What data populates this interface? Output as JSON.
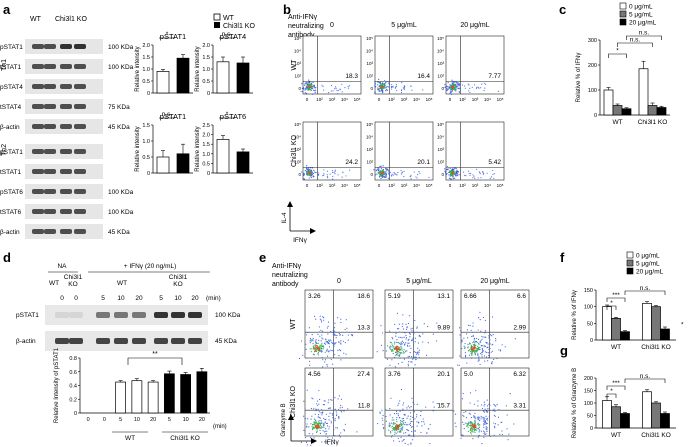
{
  "panels": {
    "a": {
      "letter": "a",
      "legend_wt": "WT",
      "legend_ko": "Chi3l1 KO",
      "blot_header": [
        "WT",
        "Chi3l1 KO"
      ],
      "groups": [
        "Th1",
        "Th2"
      ],
      "bands": [
        {
          "name": "pSTAT1",
          "mw": "100 KDa"
        },
        {
          "name": "tSTAT1",
          "mw": "100 KDa"
        },
        {
          "name": "pSTAT4",
          "mw": ""
        },
        {
          "name": "tSTAT4",
          "mw": "75 KDa"
        },
        {
          "name": "β-actin",
          "mw": "45 KDa"
        },
        {
          "name": "pSTAT1",
          "mw": ""
        },
        {
          "name": "tSTAT1",
          "mw": ""
        },
        {
          "name": "pSTAT6",
          "mw": "100 KDa"
        },
        {
          "name": "tSTAT6",
          "mw": "100 KDa"
        },
        {
          "name": "β-actin",
          "mw": "45 KDa"
        }
      ],
      "ylabel": "Relative intensity",
      "sig": [
        "*",
        "n.s.",
        "n.s.",
        "*"
      ]
    },
    "b": {
      "letter": "b",
      "treatment": "Anti-IFNγ neutralizing antibody",
      "doses": [
        "0",
        "5 μg/mL",
        "20 μg/mL"
      ],
      "rows": [
        "WT",
        "Chi3l1 KO"
      ],
      "quadrant_values": [
        [
          "18.3",
          "16.4",
          "7.77"
        ],
        [
          "24.2",
          "20.1",
          "5.42"
        ]
      ],
      "ylabel": "IL-4",
      "xlabel": "IFNγ"
    },
    "c": {
      "letter": "c",
      "legend": [
        "0 μg/mL",
        "5 μg/mL",
        "20 μg/mL"
      ],
      "ylabel": "Relative % of IFNγ",
      "groups": [
        "WT",
        "Chi3l1 KO"
      ],
      "sig": [
        "*",
        "n.s.",
        "n.s."
      ]
    },
    "d": {
      "letter": "d",
      "na": "NA",
      "ifn": "+ IFNγ (20 ng/mL)",
      "genotypes": [
        "WT",
        "Chi3l1 KO",
        "WT",
        "Chi3l1 KO"
      ],
      "timepoints": [
        "0",
        "0",
        "5",
        "10",
        "20",
        "5",
        "10",
        "20"
      ],
      "min": "(min)",
      "bands": [
        {
          "name": "pSTAT1",
          "mw": "100 KDa"
        },
        {
          "name": "β-actin",
          "mw": "45 KDa"
        }
      ],
      "ylabel": "Relative Intensity of pSTAT1",
      "x_groups": [
        "WT",
        "Chi3l1 KO"
      ],
      "sig": "**"
    },
    "e": {
      "letter": "e",
      "treatment": "Anti-IFNγ neutralizing antibody",
      "doses": [
        "0",
        "5 μg/mL",
        "20 μg/mL"
      ],
      "rows": [
        "WT",
        "Chi3l1 KO"
      ],
      "quadrants": [
        [
          [
            "3.26",
            "18.6",
            "13.3"
          ],
          [
            "5.19",
            "13.1",
            "9.89"
          ],
          [
            "6.66",
            "6.6",
            "2.99"
          ]
        ],
        [
          [
            "4.56",
            "27.4",
            "11.8"
          ],
          [
            "3.76",
            "20.1",
            "15.7"
          ],
          [
            "5.0",
            "6.32",
            "3.31"
          ]
        ]
      ],
      "ylabel": "Granzyme B",
      "xlabel": "IFNγ"
    },
    "f": {
      "letter": "f",
      "legend": [
        "0 μg/mL",
        "5 μg/mL",
        "20 μg/mL"
      ],
      "ylabel": "Relative % of IFNγ",
      "groups": [
        "WT",
        "Chi3l1 KO"
      ],
      "sig": [
        "*",
        "***",
        "n.s."
      ]
    },
    "g": {
      "letter": "g",
      "ylabel": "Relative % of Granzyme B",
      "groups": [
        "WT",
        "Chi3l1 KO"
      ],
      "sig": [
        "*",
        "***",
        "n.s."
      ]
    }
  },
  "chart_data": [
    {
      "type": "bar",
      "id": "a-pSTAT1",
      "title": "pSTAT1",
      "ylabel": "Relative intensity",
      "categories": [
        "WT",
        "Chi3l1 KO"
      ],
      "values": [
        0.9,
        1.45
      ],
      "errors": [
        0.08,
        0.15
      ],
      "ylim": [
        0,
        2
      ],
      "yticks": [
        "0",
        "0.5",
        "1.0",
        "1.5",
        "2.0"
      ],
      "colors": [
        "#ffffff",
        "#000000"
      ]
    },
    {
      "type": "bar",
      "id": "a-pSTAT4",
      "title": "pSTAT4",
      "ylabel": "Relative intensity",
      "categories": [
        "WT",
        "Chi3l1 KO"
      ],
      "values": [
        1.3,
        1.25
      ],
      "errors": [
        0.2,
        0.25
      ],
      "ylim": [
        0,
        2
      ],
      "yticks": [
        "0",
        "0.5",
        "1.0",
        "1.5",
        "2.0"
      ],
      "colors": [
        "#ffffff",
        "#000000"
      ]
    },
    {
      "type": "bar",
      "id": "a-pSTAT1-th2",
      "title": "pSTAT1",
      "ylabel": "Relative intensity",
      "categories": [
        "WT",
        "Chi3l1 KO"
      ],
      "values": [
        0.5,
        0.6
      ],
      "errors": [
        0.2,
        0.3
      ],
      "ylim": [
        0,
        1.5
      ],
      "yticks": [
        "0",
        "0.5",
        "1.0",
        "1.5"
      ],
      "colors": [
        "#ffffff",
        "#000000"
      ]
    },
    {
      "type": "bar",
      "id": "a-pSTAT6",
      "title": "pSTAT6",
      "ylabel": "Relative intensity",
      "categories": [
        "WT",
        "Chi3l1 KO"
      ],
      "values": [
        1.75,
        1.1
      ],
      "errors": [
        0.2,
        0.15
      ],
      "ylim": [
        0,
        2.5
      ],
      "yticks": [
        "0",
        "0.5",
        "1.0",
        "1.5",
        "2.0",
        "2.5"
      ],
      "colors": [
        "#ffffff",
        "#000000"
      ]
    },
    {
      "type": "bar",
      "id": "c",
      "ylabel": "Relative % of IFNγ",
      "categories": [
        "WT",
        "Chi3l1 KO"
      ],
      "series": [
        {
          "name": "0 μg/mL",
          "values": [
            100,
            185
          ],
          "errors": [
            10,
            30
          ]
        },
        {
          "name": "5 μg/mL",
          "values": [
            38,
            38
          ],
          "errors": [
            6,
            10
          ]
        },
        {
          "name": "20 μg/mL",
          "values": [
            25,
            30
          ],
          "errors": [
            4,
            5
          ]
        }
      ],
      "ylim": [
        0,
        300
      ],
      "yticks": [
        "0",
        "100",
        "200",
        "300"
      ],
      "colors": [
        "#ffffff",
        "#777777",
        "#000000"
      ]
    },
    {
      "type": "bar",
      "id": "d",
      "ylabel": "Relative Intensity of pSTAT1",
      "categories": [
        "0",
        "0",
        "5",
        "10",
        "20",
        "5",
        "10",
        "20"
      ],
      "values": [
        0.0,
        0.0,
        0.45,
        0.47,
        0.45,
        0.57,
        0.56,
        0.6
      ],
      "errors": [
        0,
        0,
        0.02,
        0.03,
        0.02,
        0.04,
        0.03,
        0.05
      ],
      "ylim": [
        0,
        0.8
      ],
      "yticks": [
        "0",
        "0.2",
        "0.4",
        "0.6",
        "0.8"
      ]
    },
    {
      "type": "bar",
      "id": "f",
      "ylabel": "Relative % of IFNγ",
      "categories": [
        "WT",
        "Chi3l1 KO"
      ],
      "series": [
        {
          "name": "0 μg/mL",
          "values": [
            100,
            110
          ],
          "errors": [
            5,
            5
          ]
        },
        {
          "name": "5 μg/mL",
          "values": [
            65,
            100
          ],
          "errors": [
            3,
            3
          ]
        },
        {
          "name": "20 μg/mL",
          "values": [
            25,
            33
          ],
          "errors": [
            3,
            6
          ]
        }
      ],
      "ylim": [
        0,
        150
      ],
      "yticks": [
        "0",
        "50",
        "100",
        "150"
      ],
      "colors": [
        "#ffffff",
        "#777777",
        "#000000"
      ]
    },
    {
      "type": "bar",
      "id": "g",
      "ylabel": "Relative % of Granzyme B",
      "categories": [
        "WT",
        "Chi3l1 KO"
      ],
      "series": [
        {
          "name": "0 μg/mL",
          "values": [
            110,
            145
          ],
          "errors": [
            15,
            8
          ]
        },
        {
          "name": "5 μg/mL",
          "values": [
            85,
            100
          ],
          "errors": [
            8,
            5
          ]
        },
        {
          "name": "20 μg/mL",
          "values": [
            58,
            58
          ],
          "errors": [
            4,
            6
          ]
        }
      ],
      "ylim": [
        0,
        200
      ],
      "yticks": [
        "0",
        "50",
        "100",
        "150",
        "200"
      ],
      "colors": [
        "#ffffff",
        "#777777",
        "#000000"
      ]
    }
  ]
}
